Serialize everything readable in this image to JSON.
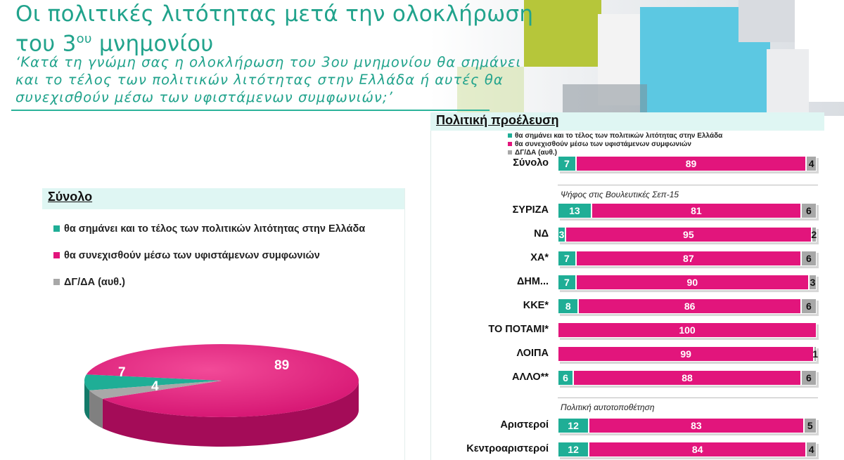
{
  "header": {
    "title_line1": "Οι πολιτικές λιτότητας μετά την ολοκλήρωση",
    "title_line2_pre": "του 3",
    "title_line2_sup": "ου",
    "title_line2_post": " μνημονίου",
    "subtitle": "‘Κατά τη γνώμη σας η ολοκλήρωση του 3ου μνημονίου θα σημάνει και το τέλος των πολιτικών λιτότητας στην Ελλάδα ή αυτές θα συνεχισθούν μέσω των υφιστάμενων συμφωνιών;’"
  },
  "colors": {
    "teal": "#1fae96",
    "magenta": "#e2157c",
    "grey": "#a8a8a8",
    "accent": "#21a38c"
  },
  "chart_data": [
    {
      "type": "pie",
      "title": "Σύνολο",
      "categories": [
        "θα σημάνει και το τέλος των πολιτικών λιτότητας στην Ελλάδα",
        "θα συνεχισθούν μέσω των υφιστάμενων συμφωνιών",
        "ΔΓ/ΔΑ (αυθ.)"
      ],
      "values": [
        7,
        89,
        4
      ],
      "legend": "top-left"
    },
    {
      "type": "bar",
      "stacked": true,
      "orientation": "horizontal",
      "title": "Πολιτική προέλευση",
      "series_names": [
        "θα σημάνει και το τέλος των πολιτικών λιτότητας στην Ελλάδα",
        "θα συνεχισθούν μέσω των υφιστάμενων συμφωνιών",
        "ΔΓ/ΔΑ (αυθ.)"
      ],
      "group_labels": [
        "Ψήφος στις Βουλευτικές Σεπ-15",
        "Πολιτική αυτοτοποθέτηση"
      ],
      "rows": [
        {
          "label": "Σύνολο",
          "values": [
            7,
            89,
            4
          ]
        },
        {
          "label": "ΣΥΡΙΖΑ",
          "values": [
            13,
            81,
            6
          ]
        },
        {
          "label": "ΝΔ",
          "values": [
            3,
            95,
            2
          ]
        },
        {
          "label": "ΧΑ*",
          "values": [
            7,
            87,
            6
          ]
        },
        {
          "label": "ΔΗΜ...",
          "values": [
            7,
            90,
            3
          ]
        },
        {
          "label": "ΚΚΕ*",
          "values": [
            8,
            86,
            6
          ]
        },
        {
          "label": "ΤΟ ΠΟΤΑΜΙ*",
          "values": [
            0,
            100,
            0
          ]
        },
        {
          "label": "ΛΟΙΠΑ",
          "values": [
            0,
            99,
            1
          ]
        },
        {
          "label": "ΑΛΛΟ**",
          "values": [
            6,
            88,
            6
          ]
        },
        {
          "label": "Αριστεροί",
          "values": [
            12,
            83,
            5
          ]
        },
        {
          "label": "Κεντροαριστεροί",
          "values": [
            12,
            84,
            4
          ]
        }
      ],
      "xlim": [
        0,
        100
      ],
      "legend": "top"
    }
  ]
}
